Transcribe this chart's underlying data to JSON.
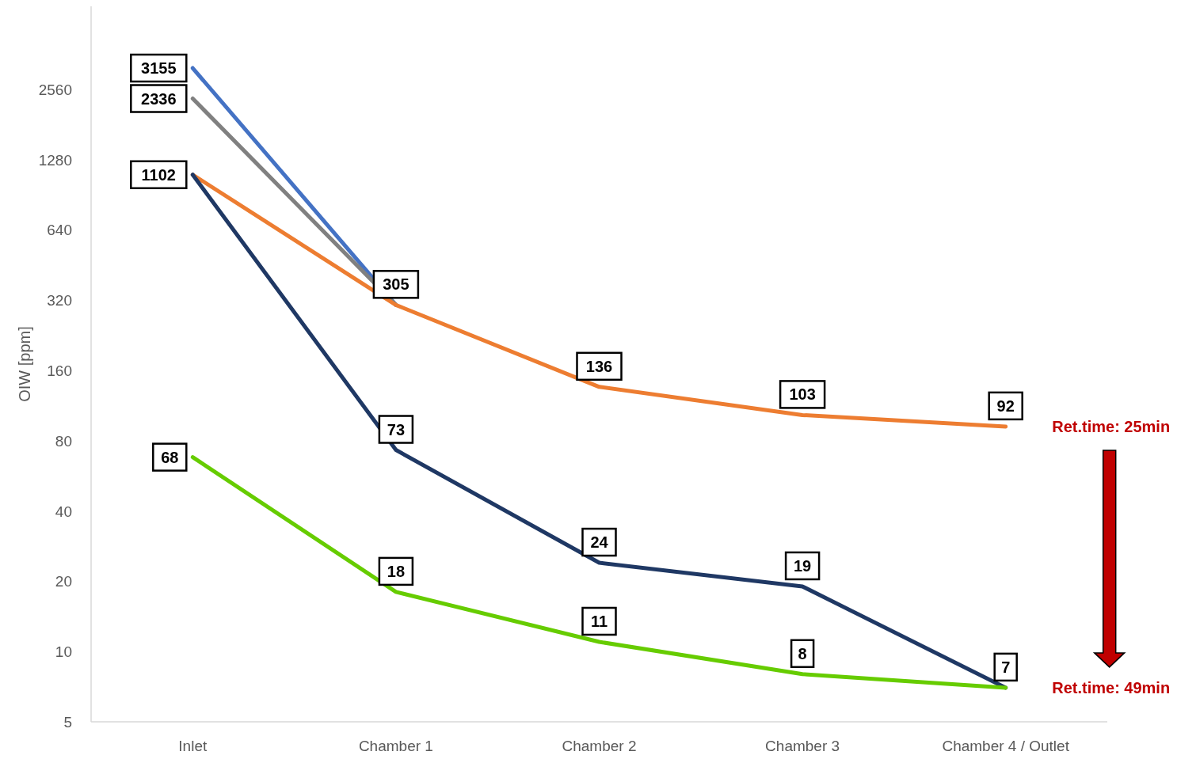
{
  "chart_data": {
    "type": "line",
    "ylabel": "OIW [ppm]",
    "categories": [
      "Inlet",
      "Chamber 1",
      "Chamber 2",
      "Chamber 3",
      "Chamber 4 / Outlet"
    ],
    "log": "y",
    "ylim": [
      5,
      5800
    ],
    "yticks": [
      5,
      10,
      20,
      40,
      80,
      160,
      320,
      640,
      1280,
      2560
    ],
    "grid": false,
    "line_style": "solid",
    "series": [
      {
        "color": "#4472c4",
        "values": [
          3155,
          305,
          null,
          null,
          null
        ],
        "value_labels": [
          "3155",
          null,
          null,
          null,
          null
        ]
      },
      {
        "color": "#808080",
        "values": [
          2336,
          305,
          null,
          null,
          null
        ],
        "value_labels": [
          "2336",
          null,
          null,
          null,
          null
        ]
      },
      {
        "color": "#ed7d31",
        "values": [
          1102,
          305,
          136,
          103,
          92
        ],
        "value_labels": [
          null,
          "305",
          "136",
          "103",
          "92"
        ]
      },
      {
        "color": "#1f3864",
        "values": [
          1102,
          73,
          24,
          19,
          7
        ],
        "value_labels": [
          "1102",
          "73",
          "24",
          "19",
          "7"
        ]
      },
      {
        "color": "#66cc00",
        "values": [
          68,
          18,
          11,
          8,
          7
        ],
        "value_labels": [
          "68",
          "18",
          "11",
          "8",
          null
        ]
      }
    ],
    "annotations": [
      {
        "text": "Ret.time: 25min",
        "x": "Chamber 4 / Outlet",
        "y": 92
      },
      {
        "text": "Ret.time: 49min",
        "x": "Chamber 4 / Outlet",
        "y": 7
      }
    ]
  }
}
